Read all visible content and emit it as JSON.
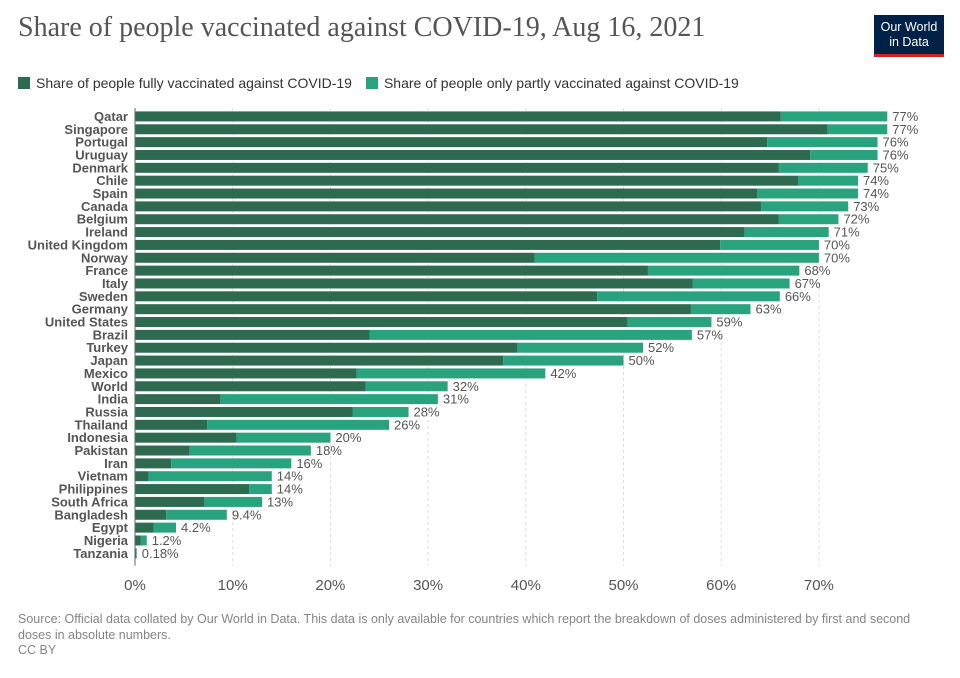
{
  "title": "Share of people vaccinated against COVID-19, Aug 16, 2021",
  "logo": {
    "line1": "Our World",
    "line2": "in Data"
  },
  "colors": {
    "fully": "#2d6a4f",
    "partly": "#28a37d",
    "grid": "#dddddd",
    "axis": "#666666",
    "text": "#555555"
  },
  "footer": {
    "source": "Source: Official data collated by Our World in Data. This data is only available for countries which report the breakdown of doses administered by first and second doses in absolute numbers.",
    "license": "CC BY"
  },
  "chart_data": {
    "type": "bar",
    "orientation": "horizontal",
    "stacked": true,
    "title": "Share of people vaccinated against COVID-19, Aug 16, 2021",
    "xlim": [
      0,
      77
    ],
    "xticks": [
      0,
      10,
      20,
      30,
      40,
      50,
      60,
      70
    ],
    "xtick_labels": [
      "0%",
      "10%",
      "20%",
      "30%",
      "40%",
      "50%",
      "60%",
      "70%"
    ],
    "grid": true,
    "legend_position": "top",
    "categories": [
      "Qatar",
      "Singapore",
      "Portugal",
      "Uruguay",
      "Denmark",
      "Chile",
      "Spain",
      "Canada",
      "Belgium",
      "Ireland",
      "United Kingdom",
      "Norway",
      "France",
      "Italy",
      "Sweden",
      "Germany",
      "United States",
      "Brazil",
      "Turkey",
      "Japan",
      "Mexico",
      "World",
      "India",
      "Russia",
      "Thailand",
      "Indonesia",
      "Pakistan",
      "Iran",
      "Vietnam",
      "Philippines",
      "South Africa",
      "Bangladesh",
      "Egypt",
      "Nigeria",
      "Tanzania"
    ],
    "series": [
      {
        "name": "Share of people fully vaccinated against COVID-19",
        "values": [
          66.1,
          70.9,
          64.7,
          69.1,
          65.9,
          67.9,
          63.7,
          64.1,
          65.9,
          62.4,
          59.9,
          40.9,
          52.5,
          57.1,
          47.3,
          56.9,
          50.4,
          24.0,
          39.1,
          37.7,
          22.7,
          23.6,
          8.7,
          22.3,
          7.4,
          10.4,
          5.6,
          3.7,
          1.4,
          11.7,
          7.1,
          3.2,
          1.9,
          0.6,
          0.1
        ]
      },
      {
        "name": "Share of people only partly vaccinated against COVID-19",
        "values": [
          10.9,
          6.1,
          11.3,
          6.9,
          9.1,
          6.1,
          10.3,
          8.9,
          6.1,
          8.6,
          10.1,
          29.1,
          15.5,
          9.9,
          18.7,
          6.1,
          8.6,
          33.0,
          12.9,
          12.3,
          19.3,
          8.4,
          22.3,
          5.7,
          18.6,
          9.6,
          12.4,
          12.3,
          12.6,
          2.3,
          5.9,
          6.2,
          2.3,
          0.6,
          0.08
        ]
      }
    ],
    "totals": [
      77,
      77,
      76,
      76,
      75,
      74,
      74,
      73,
      72,
      71,
      70,
      70,
      68,
      67,
      66,
      63,
      59,
      57,
      52,
      50,
      42,
      32,
      31,
      28,
      26,
      20,
      18,
      16,
      14,
      14,
      13,
      9.4,
      4.2,
      1.2,
      0.18
    ],
    "value_labels": [
      "77%",
      "77%",
      "76%",
      "76%",
      "75%",
      "74%",
      "74%",
      "73%",
      "72%",
      "71%",
      "70%",
      "70%",
      "68%",
      "67%",
      "66%",
      "63%",
      "59%",
      "57%",
      "52%",
      "50%",
      "42%",
      "32%",
      "31%",
      "28%",
      "26%",
      "20%",
      "18%",
      "16%",
      "14%",
      "14%",
      "13%",
      "9.4%",
      "4.2%",
      "1.2%",
      "0.18%"
    ]
  }
}
